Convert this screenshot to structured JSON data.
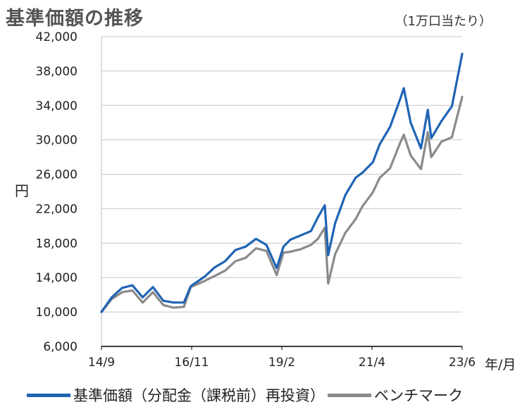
{
  "title": "基準価額の推移",
  "unit_note": "（1万口当たり）",
  "colors": {
    "fund": "#1f64b4",
    "benchmark": "#8a8a8a",
    "grid": "#c8c8c8",
    "axis": "#000000"
  },
  "chart_data": {
    "type": "line",
    "title": "基準価額の推移",
    "ylabel": "円",
    "xlabel": "年/月",
    "ylim": [
      6000,
      42000
    ],
    "yticks": [
      6000,
      10000,
      14000,
      18000,
      22000,
      26000,
      30000,
      34000,
      38000,
      42000
    ],
    "ytick_labels": [
      "6,000",
      "10,000",
      "14,000",
      "18,000",
      "22,000",
      "26,000",
      "30,000",
      "34,000",
      "38,000",
      "42,000"
    ],
    "xticks": [
      "14/9",
      "16/11",
      "19/2",
      "21/4",
      "23/6"
    ],
    "grid": "horizontal",
    "legend_position": "bottom",
    "x": [
      "2014-09",
      "2014-12",
      "2015-03",
      "2015-06",
      "2015-09",
      "2015-12",
      "2016-03",
      "2016-06",
      "2016-09",
      "2016-11",
      "2017-03",
      "2017-06",
      "2017-09",
      "2017-12",
      "2018-03",
      "2018-06",
      "2018-09",
      "2018-12",
      "2019-02",
      "2019-04",
      "2019-07",
      "2019-10",
      "2019-12",
      "2020-02",
      "2020-03",
      "2020-05",
      "2020-08",
      "2020-11",
      "2021-01",
      "2021-04",
      "2021-06",
      "2021-09",
      "2021-12",
      "2022-01",
      "2022-03",
      "2022-06",
      "2022-08",
      "2022-09",
      "2022-12",
      "2023-03",
      "2023-06"
    ],
    "series": [
      {
        "name": "基準価額（分配金（課税前）再投資）",
        "values": [
          10000,
          11700,
          12800,
          13100,
          11700,
          12900,
          11300,
          11100,
          11100,
          13000,
          14100,
          15200,
          15900,
          17200,
          17600,
          18500,
          17800,
          15100,
          17600,
          18400,
          18900,
          19400,
          21000,
          22400,
          16600,
          20300,
          23600,
          25600,
          26200,
          27400,
          29500,
          31500,
          34800,
          36000,
          32000,
          29000,
          33500,
          30200,
          32200,
          33900,
          40000
        ]
      },
      {
        "name": "ベンチマーク",
        "values": [
          10000,
          11500,
          12300,
          12500,
          11100,
          12300,
          10800,
          10500,
          10600,
          12900,
          13600,
          14200,
          14800,
          15900,
          16300,
          17400,
          17100,
          14300,
          16900,
          17000,
          17300,
          17800,
          18500,
          19800,
          13300,
          16700,
          19200,
          20800,
          22300,
          23900,
          25600,
          26700,
          29700,
          30600,
          28200,
          26600,
          30900,
          28000,
          29800,
          30300,
          35000
        ]
      }
    ]
  }
}
